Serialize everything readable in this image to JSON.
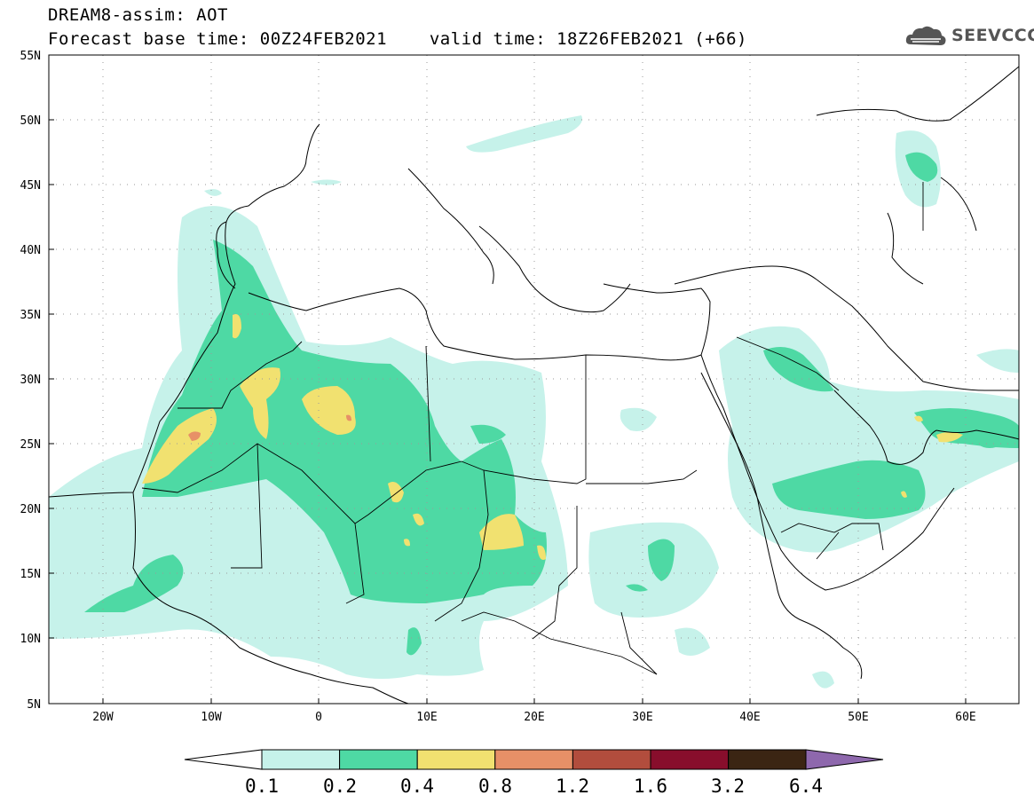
{
  "header": {
    "title": "DREAM8-assim: AOT",
    "forecast_base": "Forecast base time: 00Z24FEB2021",
    "valid_time": "valid time: 18Z26FEB2021 (+66)"
  },
  "logo": {
    "text": "SEEVCCC",
    "icon": "cloud-icon"
  },
  "map": {
    "lat_ticks": [
      "55N",
      "50N",
      "45N",
      "40N",
      "35N",
      "30N",
      "25N",
      "20N",
      "15N",
      "10N",
      "5N"
    ],
    "lon_ticks": [
      "20W",
      "10W",
      "0",
      "10E",
      "20E",
      "30E",
      "40E",
      "50E",
      "60E"
    ],
    "extent": {
      "lon_min": -25,
      "lon_max": 65,
      "lat_min": 5,
      "lat_max": 55
    }
  },
  "colorbar": {
    "labels": [
      "0.1",
      "0.2",
      "0.4",
      "0.8",
      "1.2",
      "1.6",
      "3.2",
      "6.4"
    ],
    "colors": [
      "#c6f2ea",
      "#4ed9a4",
      "#f1e170",
      "#e79067",
      "#b24d3d",
      "#880e2c",
      "#3b2513",
      "#8e68ad"
    ]
  }
}
